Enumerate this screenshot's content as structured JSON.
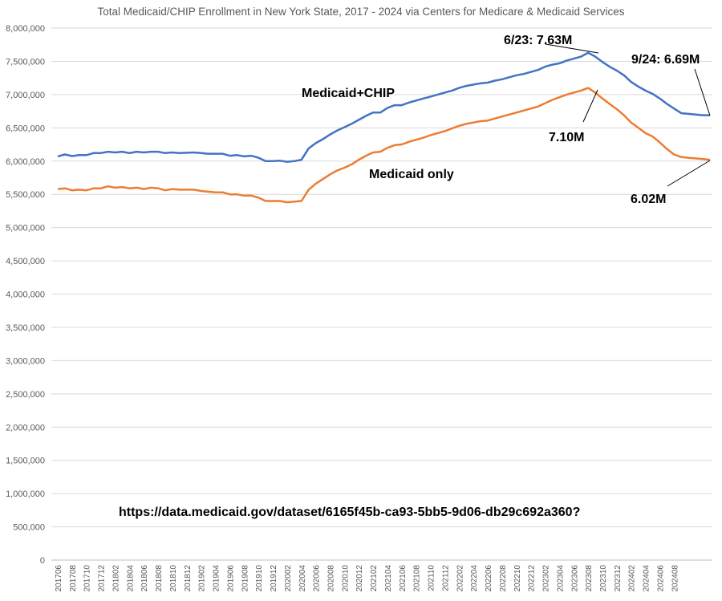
{
  "chart_data": {
    "type": "line",
    "title": "Total Medicaid/CHIP Enrollment in New York State, 2017 - 2024 via Centers for Medicare & Medicaid Services",
    "xlabel": "",
    "ylabel": "",
    "ylim": [
      0,
      8000000
    ],
    "ytick_step": 500000,
    "grid": true,
    "x_start": "2017-06",
    "x_end": "2024-09",
    "xtick_labels": [
      "201706",
      "201708",
      "201710",
      "201712",
      "201802",
      "201804",
      "201806",
      "201808",
      "201810",
      "201812",
      "201902",
      "201904",
      "201906",
      "201908",
      "201910",
      "201912",
      "202002",
      "202004",
      "202006",
      "202008",
      "202010",
      "202012",
      "202102",
      "202104",
      "202106",
      "202108",
      "202110",
      "202112",
      "202202",
      "202204",
      "202206",
      "202208",
      "202210",
      "202212",
      "202302",
      "202304",
      "202306",
      "202308",
      "202310",
      "202312",
      "202402",
      "202404",
      "202406",
      "202408"
    ],
    "series": [
      {
        "name": "Medicaid+CHIP",
        "color": "#4472C4",
        "values": [
          6070000,
          6100000,
          6075000,
          6090000,
          6090000,
          6120000,
          6120000,
          6140000,
          6130000,
          6140000,
          6120000,
          6140000,
          6130000,
          6140000,
          6140000,
          6120000,
          6130000,
          6120000,
          6125000,
          6130000,
          6120000,
          6110000,
          6110000,
          6110000,
          6080000,
          6090000,
          6070000,
          6080000,
          6050000,
          6000000,
          6000000,
          6005000,
          5990000,
          6000000,
          6020000,
          6190000,
          6270000,
          6330000,
          6400000,
          6460000,
          6510000,
          6560000,
          6620000,
          6680000,
          6730000,
          6730000,
          6800000,
          6840000,
          6840000,
          6880000,
          6910000,
          6940000,
          6970000,
          7000000,
          7030000,
          7060000,
          7100000,
          7130000,
          7150000,
          7170000,
          7180000,
          7210000,
          7230000,
          7260000,
          7290000,
          7310000,
          7340000,
          7370000,
          7420000,
          7450000,
          7470000,
          7510000,
          7540000,
          7570000,
          7630000,
          7570000,
          7490000,
          7420000,
          7360000,
          7290000,
          7190000,
          7120000,
          7060000,
          7010000,
          6940000,
          6860000,
          6790000,
          6720000,
          6710000,
          6700000,
          6690000,
          6690000
        ]
      },
      {
        "name": "Medicaid only",
        "color": "#ED7D31",
        "values": [
          5580000,
          5590000,
          5560000,
          5570000,
          5560000,
          5590000,
          5590000,
          5620000,
          5600000,
          5610000,
          5590000,
          5600000,
          5580000,
          5600000,
          5590000,
          5560000,
          5580000,
          5570000,
          5570000,
          5570000,
          5550000,
          5540000,
          5530000,
          5530000,
          5500000,
          5500000,
          5480000,
          5480000,
          5450000,
          5400000,
          5400000,
          5400000,
          5380000,
          5390000,
          5400000,
          5570000,
          5660000,
          5730000,
          5800000,
          5860000,
          5900000,
          5950000,
          6020000,
          6080000,
          6130000,
          6140000,
          6200000,
          6240000,
          6250000,
          6290000,
          6320000,
          6350000,
          6390000,
          6420000,
          6450000,
          6490000,
          6530000,
          6560000,
          6580000,
          6600000,
          6610000,
          6640000,
          6670000,
          6700000,
          6730000,
          6760000,
          6790000,
          6820000,
          6870000,
          6920000,
          6960000,
          7000000,
          7030000,
          7060000,
          7100000,
          7030000,
          6940000,
          6860000,
          6780000,
          6690000,
          6580000,
          6500000,
          6420000,
          6370000,
          6280000,
          6180000,
          6100000,
          6060000,
          6050000,
          6040000,
          6030000,
          6020000
        ]
      }
    ],
    "annotations": {
      "series1_label": "Medicaid+CHIP",
      "series2_label": "Medicaid only",
      "peak_blue": "6/23: 7.63M",
      "peak_orange": "7.10M",
      "end_blue": "9/24: 6.69M",
      "end_orange": "6.02M",
      "source_url": "https://data.medicaid.gov/dataset/6165f45b-ca93-5bb5-9d06-db29c692a360?"
    }
  }
}
